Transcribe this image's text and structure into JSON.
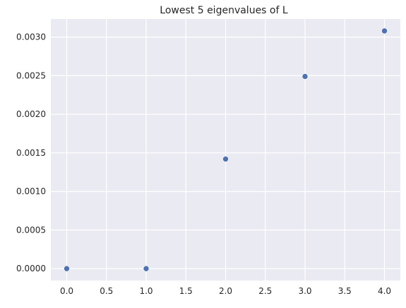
{
  "chart_data": {
    "type": "scatter",
    "title": "Lowest 5 eigenvalues of L",
    "xlabel": "",
    "ylabel": "",
    "series": [
      {
        "x": [
          0,
          1,
          2,
          3,
          4
        ],
        "y": [
          0.0,
          0.0,
          0.00142,
          0.00249,
          0.00308
        ]
      }
    ],
    "xlim": [
      -0.2,
      4.2
    ],
    "ylim": [
      -0.000154,
      0.003234
    ],
    "xticks": [
      0.0,
      0.5,
      1.0,
      1.5,
      2.0,
      2.5,
      3.0,
      3.5,
      4.0
    ],
    "xtick_labels": [
      "0.0",
      "0.5",
      "1.0",
      "1.5",
      "2.0",
      "2.5",
      "3.0",
      "3.5",
      "4.0"
    ],
    "yticks": [
      0.0,
      0.0005,
      0.001,
      0.0015,
      0.002,
      0.0025,
      0.003
    ],
    "ytick_labels": [
      "0.0000",
      "0.0005",
      "0.0010",
      "0.0015",
      "0.0020",
      "0.0025",
      "0.0030"
    ],
    "grid": true,
    "legend": "none",
    "colors": {
      "background": "#eaeaf2",
      "grid": "#ffffff",
      "marker": "#4c72b0",
      "text": "#262626"
    }
  }
}
